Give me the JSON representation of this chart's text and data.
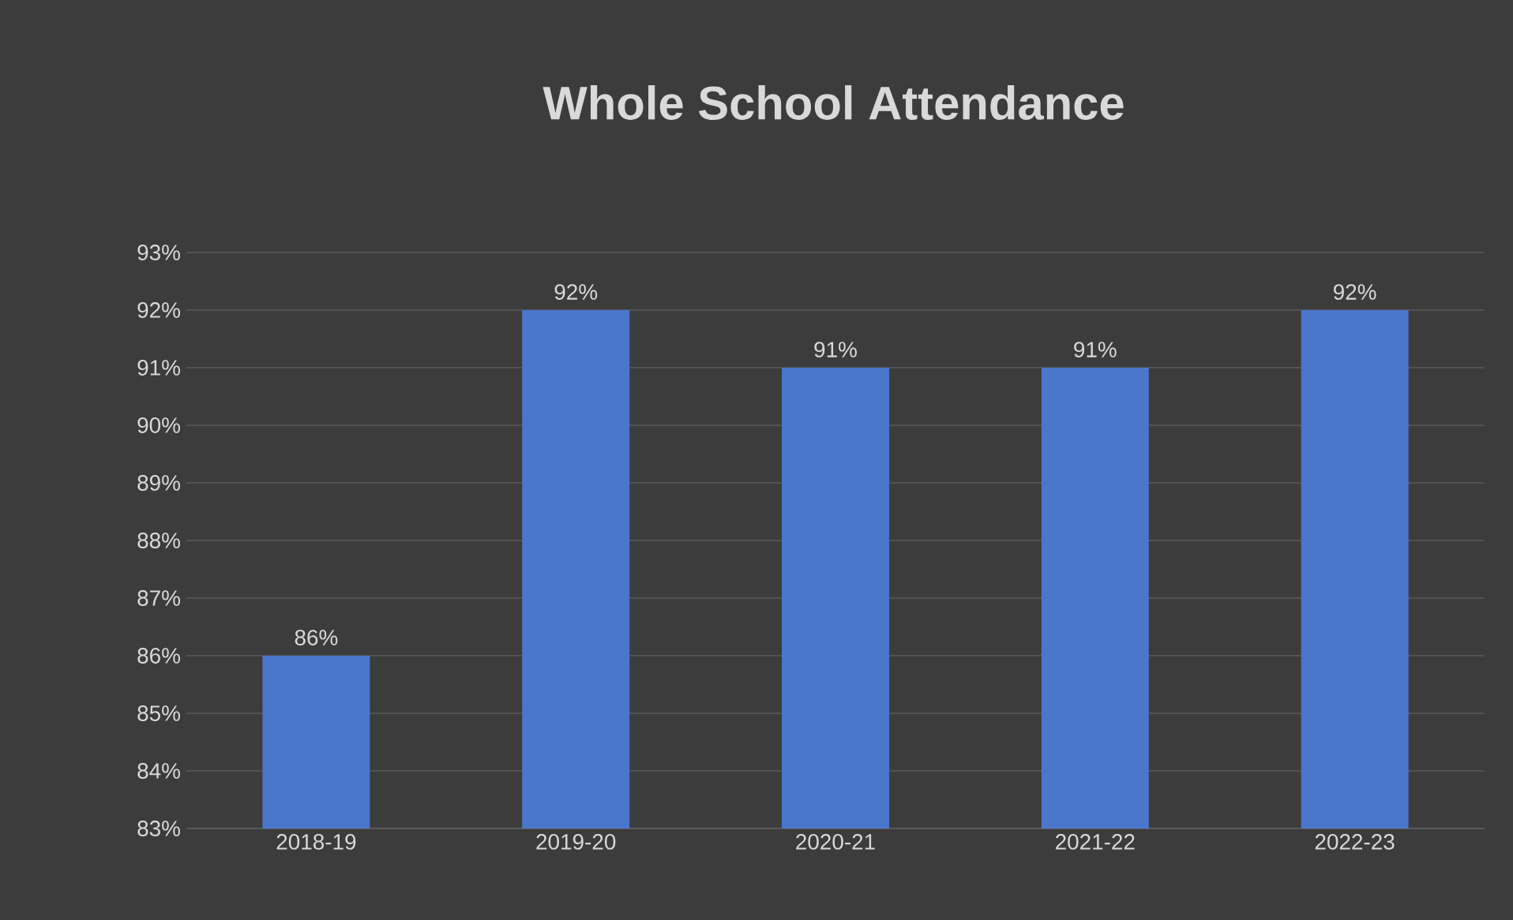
{
  "chart_data": {
    "type": "bar",
    "title": "Whole School Attendance",
    "categories": [
      "2018-19",
      "2019-20",
      "2020-21",
      "2021-22",
      "2022-23"
    ],
    "values": [
      86,
      92,
      91,
      91,
      92
    ],
    "value_labels": [
      "86%",
      "92%",
      "91%",
      "91%",
      "92%"
    ],
    "color": "#4a76cc",
    "ylim": [
      83,
      93
    ],
    "yticks": [
      {
        "value": 83,
        "label": "83%"
      },
      {
        "value": 84,
        "label": "84%"
      },
      {
        "value": 85,
        "label": "85%"
      },
      {
        "value": 86,
        "label": "86%"
      },
      {
        "value": 87,
        "label": "87%"
      },
      {
        "value": 88,
        "label": "88%"
      },
      {
        "value": 89,
        "label": "89%"
      },
      {
        "value": 90,
        "label": "90%"
      },
      {
        "value": 91,
        "label": "91%"
      },
      {
        "value": 92,
        "label": "92%"
      },
      {
        "value": 93,
        "label": "93%"
      }
    ],
    "grid": "y"
  }
}
